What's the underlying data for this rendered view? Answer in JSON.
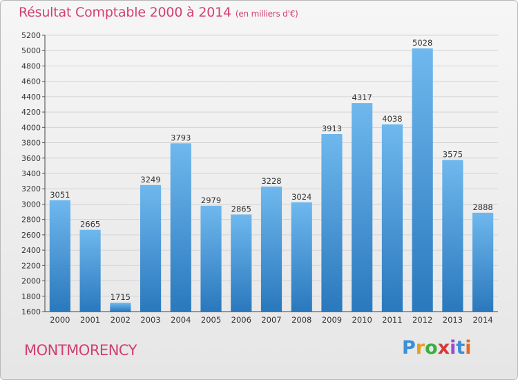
{
  "header": {
    "title": "Résultat Comptable 2000 à 2014",
    "subtitle": "(en milliers d'€)"
  },
  "footer": {
    "commune": "MONTMORENCY",
    "brand_letters": [
      "P",
      "r",
      "o",
      "x",
      "i",
      "t",
      "i"
    ],
    "brand_colors": [
      "#3a8fd8",
      "#e8a020",
      "#3ab040",
      "#d83a3a",
      "#9a4ad0",
      "#3a8fd8",
      "#e86a20"
    ]
  },
  "colors": {
    "bar_top": "#6fb8ee",
    "bar_bottom": "#2a78bd",
    "title": "#d2406e"
  },
  "chart_data": {
    "type": "bar",
    "title": "Résultat Comptable 2000 à 2014",
    "subtitle": "(en milliers d'€)",
    "xlabel": "",
    "ylabel": "",
    "categories": [
      "2000",
      "2001",
      "2002",
      "2003",
      "2004",
      "2005",
      "2006",
      "2007",
      "2008",
      "2009",
      "2010",
      "2011",
      "2012",
      "2013",
      "2014"
    ],
    "values": [
      3051,
      2665,
      1715,
      3249,
      3793,
      2979,
      2865,
      3228,
      3024,
      3913,
      4317,
      4038,
      5028,
      3575,
      2888
    ],
    "ylim": [
      1600,
      5200
    ],
    "yticks": [
      1600,
      1800,
      2000,
      2200,
      2400,
      2600,
      2800,
      3000,
      3200,
      3400,
      3600,
      3800,
      4000,
      4200,
      4400,
      4600,
      4800,
      5000,
      5200
    ],
    "grid": true,
    "data_labels": true
  }
}
